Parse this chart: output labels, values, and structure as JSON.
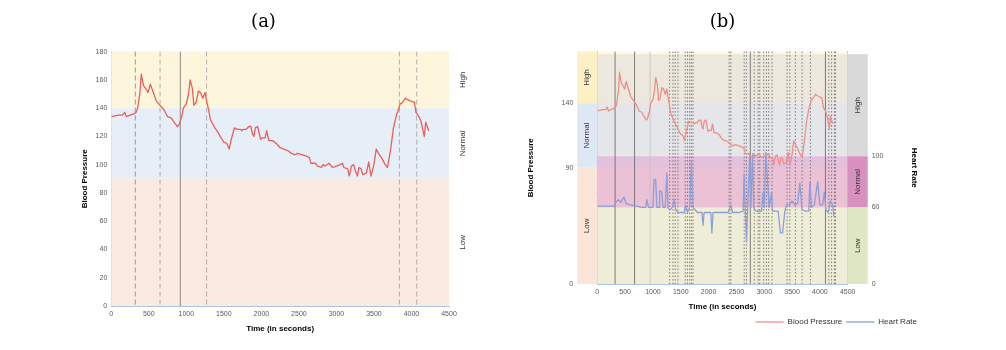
{
  "chart_data": [
    {
      "type": "line",
      "title": "(a)",
      "xlabel": "Time (in seconds)",
      "ylabel": "Blood Pressure",
      "xlim": [
        0,
        4500
      ],
      "xticks": [
        0,
        500,
        1000,
        1500,
        2000,
        2500,
        3000,
        3500,
        4000,
        4500
      ],
      "ylim": [
        0,
        180
      ],
      "yticks": [
        0,
        20,
        40,
        60,
        80,
        100,
        120,
        140,
        160,
        180
      ],
      "bands": [
        {
          "axis": "y",
          "from": 140,
          "to": 180,
          "label": "High",
          "color": "#fdf6dc"
        },
        {
          "axis": "y",
          "from": 90,
          "to": 140,
          "label": "Normal",
          "color": "#e6eef8"
        },
        {
          "axis": "y",
          "from": 0,
          "to": 90,
          "label": "Low",
          "color": "#fbeadf"
        }
      ],
      "ref_lines": [
        {
          "axis": "x",
          "value": 320,
          "line_style": "dashed",
          "color": "#808080"
        },
        {
          "axis": "x",
          "value": 650,
          "line_style": "dashed",
          "color": "#a0a0a0"
        },
        {
          "axis": "x",
          "value": 920,
          "line_style": "solid",
          "color": "#707070"
        },
        {
          "axis": "x",
          "value": 1270,
          "line_style": "dashed",
          "color": "#a0a0a0"
        },
        {
          "axis": "x",
          "value": 3840,
          "line_style": "dashed",
          "color": "#a0a0a0"
        },
        {
          "axis": "x",
          "value": 4070,
          "line_style": "dashed",
          "color": "#a0a0a0"
        }
      ],
      "series": [
        {
          "color": "#e8605a",
          "x": [
            0,
            100,
            150,
            180,
            200,
            250,
            300,
            330,
            350,
            380,
            400,
            430,
            470,
            490,
            520,
            560,
            600,
            650,
            700,
            750,
            800,
            850,
            880,
            900,
            940,
            960,
            1000,
            1030,
            1050,
            1080,
            1100,
            1130,
            1160,
            1190,
            1220,
            1250,
            1270,
            1300,
            1320,
            1380,
            1420,
            1450,
            1500,
            1540,
            1570,
            1600,
            1640,
            1680,
            1720,
            1740,
            1760,
            1800,
            1830,
            1860,
            1880,
            1900,
            1920,
            1950,
            1990,
            2010,
            2050,
            2070,
            2100,
            2150,
            2200,
            2250,
            2300,
            2350,
            2400,
            2450,
            2480,
            2550,
            2600,
            2640,
            2660,
            2720,
            2750,
            2800,
            2820,
            2850,
            2900,
            2950,
            3000,
            3050,
            3080,
            3100,
            3150,
            3170,
            3200,
            3230,
            3250,
            3280,
            3300,
            3330,
            3350,
            3400,
            3430,
            3460,
            3500,
            3530,
            3560,
            3600,
            3650,
            3680,
            3720,
            3760,
            3800,
            3850,
            3880,
            3920,
            3950,
            3990,
            4040,
            4060,
            4100,
            4130,
            4170,
            4190,
            4230
          ],
          "values": [
            134,
            135,
            135,
            137,
            134,
            135,
            136,
            137,
            140,
            150,
            164,
            156,
            153,
            151,
            157,
            151,
            145,
            142,
            139,
            134,
            133,
            129,
            127,
            128,
            134,
            140,
            143,
            150,
            160,
            154,
            142,
            144,
            152,
            151,
            147,
            151,
            145,
            138,
            132,
            126,
            123,
            120,
            116,
            115,
            111,
            118,
            126,
            125,
            125,
            124,
            125,
            125,
            127,
            127,
            122,
            120,
            126,
            127,
            118,
            119,
            119,
            124,
            117,
            117,
            115,
            112,
            111,
            110,
            108,
            107,
            108,
            107,
            106,
            105,
            101,
            101,
            99,
            98,
            100,
            99,
            101,
            98,
            99,
            100,
            101,
            98,
            97,
            92,
            99,
            100,
            96,
            92,
            98,
            97,
            93,
            94,
            102,
            92,
            100,
            111,
            108,
            105,
            100,
            98,
            110,
            126,
            135,
            143,
            144,
            147,
            146,
            145,
            144,
            137,
            134,
            130,
            120,
            130,
            124
          ]
        }
      ]
    },
    {
      "type": "line",
      "title": "(b)",
      "xlabel": "Time (in seconds)",
      "ylabel": "Blood Pressure",
      "y2label": "Heart Rate",
      "xlim": [
        0,
        4500
      ],
      "xticks": [
        0,
        500,
        1000,
        1500,
        2000,
        2500,
        3000,
        3500,
        4000,
        4500
      ],
      "ylim": [
        0,
        180
      ],
      "yticks": [
        0,
        90,
        140
      ],
      "y2lim": [
        0,
        182
      ],
      "y2ticks": [
        0,
        60,
        100
      ],
      "legend": "bottom right",
      "bands": [
        {
          "axis": "y",
          "from": 140,
          "to": 180,
          "label": "High",
          "color": "#fdf0c4"
        },
        {
          "axis": "y",
          "from": 90,
          "to": 140,
          "label": "Normal",
          "color": "#dde8f4"
        },
        {
          "axis": "y",
          "from": 0,
          "to": 90,
          "label": "Low",
          "color": "#fbe5d8"
        },
        {
          "axis": "y2",
          "from": 100,
          "to": 180,
          "label": "High",
          "color": "#d9d9d9"
        },
        {
          "axis": "y2",
          "from": 60,
          "to": 100,
          "label": "Normal",
          "color": "#d890c0"
        },
        {
          "axis": "y2",
          "from": 0,
          "to": 60,
          "label": "Low",
          "color": "#dfe8c4"
        }
      ],
      "ref_lines": [
        {
          "axis": "x",
          "value": 320,
          "line_style": "solid",
          "color": "#606060"
        },
        {
          "axis": "x",
          "value": 670,
          "line_style": "solid",
          "color": "#606060"
        },
        {
          "axis": "x",
          "value": 950,
          "line_style": "solid",
          "color": "#c0c0c0"
        },
        {
          "axis": "x",
          "value": 1300,
          "line_style": "dotted",
          "color": "#606060"
        },
        {
          "axis": "x",
          "value": 1360,
          "line_style": "dotted",
          "color": "#606060"
        },
        {
          "axis": "x",
          "value": 1400,
          "line_style": "dotted",
          "color": "#606060"
        },
        {
          "axis": "x",
          "value": 1450,
          "line_style": "dotted",
          "color": "#606060"
        },
        {
          "axis": "x",
          "value": 1580,
          "line_style": "dotted",
          "color": "#606060"
        },
        {
          "axis": "x",
          "value": 1620,
          "line_style": "dotted",
          "color": "#606060"
        },
        {
          "axis": "x",
          "value": 1660,
          "line_style": "dotted",
          "color": "#606060"
        },
        {
          "axis": "x",
          "value": 1690,
          "line_style": "dotted",
          "color": "#606060"
        },
        {
          "axis": "x",
          "value": 1720,
          "line_style": "dotted",
          "color": "#606060"
        },
        {
          "axis": "x",
          "value": 2370,
          "line_style": "dotted",
          "color": "#606060"
        },
        {
          "axis": "x",
          "value": 2400,
          "line_style": "dotted",
          "color": "#606060"
        },
        {
          "axis": "x",
          "value": 2640,
          "line_style": "dotted",
          "color": "#606060"
        },
        {
          "axis": "x",
          "value": 2680,
          "line_style": "dotted",
          "color": "#606060"
        },
        {
          "axis": "x",
          "value": 2750,
          "line_style": "solid",
          "color": "#606060"
        },
        {
          "axis": "x",
          "value": 2820,
          "line_style": "dotted",
          "color": "#606060"
        },
        {
          "axis": "x",
          "value": 2890,
          "line_style": "dotted",
          "color": "#606060"
        },
        {
          "axis": "x",
          "value": 2920,
          "line_style": "dotted",
          "color": "#606060"
        },
        {
          "axis": "x",
          "value": 2990,
          "line_style": "dotted",
          "color": "#606060"
        },
        {
          "axis": "x",
          "value": 3040,
          "line_style": "dotted",
          "color": "#606060"
        },
        {
          "axis": "x",
          "value": 3080,
          "line_style": "dotted",
          "color": "#606060"
        },
        {
          "axis": "x",
          "value": 3140,
          "line_style": "dotted",
          "color": "#606060"
        },
        {
          "axis": "x",
          "value": 3410,
          "line_style": "dotted",
          "color": "#606060"
        },
        {
          "axis": "x",
          "value": 3460,
          "line_style": "dotted",
          "color": "#606060"
        },
        {
          "axis": "x",
          "value": 3560,
          "line_style": "dotted",
          "color": "#606060"
        },
        {
          "axis": "x",
          "value": 3680,
          "line_style": "dotted",
          "color": "#606060"
        },
        {
          "axis": "x",
          "value": 3830,
          "line_style": "dotted",
          "color": "#606060"
        },
        {
          "axis": "x",
          "value": 4100,
          "line_style": "solid",
          "color": "#606060"
        },
        {
          "axis": "x",
          "value": 4160,
          "line_style": "dotted",
          "color": "#606060"
        },
        {
          "axis": "x",
          "value": 4210,
          "line_style": "dotted",
          "color": "#606060"
        },
        {
          "axis": "x",
          "value": 4260,
          "line_style": "dotted",
          "color": "#606060"
        },
        {
          "axis": "x",
          "value": 4280,
          "line_style": "dotted",
          "color": "#606060"
        }
      ],
      "series": [
        {
          "name": "Blood Pressure",
          "color": "#ef8f86",
          "x": [
            0,
            100,
            150,
            180,
            200,
            250,
            300,
            330,
            350,
            380,
            400,
            430,
            470,
            490,
            520,
            560,
            600,
            650,
            700,
            750,
            800,
            850,
            880,
            900,
            940,
            960,
            1000,
            1030,
            1050,
            1080,
            1100,
            1130,
            1160,
            1190,
            1220,
            1250,
            1270,
            1300,
            1320,
            1380,
            1420,
            1450,
            1500,
            1540,
            1570,
            1600,
            1640,
            1680,
            1720,
            1740,
            1760,
            1800,
            1830,
            1860,
            1880,
            1900,
            1920,
            1950,
            1990,
            2010,
            2050,
            2070,
            2100,
            2150,
            2200,
            2250,
            2300,
            2350,
            2400,
            2450,
            2480,
            2550,
            2600,
            2640,
            2660,
            2720,
            2750,
            2800,
            2820,
            2850,
            2900,
            2950,
            3000,
            3050,
            3080,
            3100,
            3150,
            3170,
            3200,
            3230,
            3250,
            3280,
            3300,
            3330,
            3350,
            3400,
            3430,
            3460,
            3500,
            3530,
            3560,
            3600,
            3650,
            3680,
            3720,
            3760,
            3800,
            3850,
            3880,
            3920,
            3950,
            3990,
            4040,
            4060,
            4100,
            4130,
            4170,
            4190,
            4230
          ],
          "values": [
            134,
            135,
            135,
            137,
            134,
            135,
            136,
            137,
            140,
            150,
            164,
            156,
            153,
            151,
            157,
            151,
            145,
            142,
            139,
            134,
            133,
            129,
            127,
            128,
            134,
            140,
            143,
            150,
            160,
            154,
            142,
            144,
            152,
            151,
            147,
            151,
            145,
            138,
            132,
            126,
            123,
            120,
            116,
            115,
            111,
            118,
            126,
            125,
            125,
            124,
            125,
            125,
            127,
            127,
            122,
            120,
            126,
            127,
            118,
            119,
            119,
            124,
            117,
            117,
            115,
            112,
            111,
            110,
            108,
            107,
            108,
            107,
            106,
            105,
            101,
            101,
            99,
            98,
            100,
            99,
            101,
            98,
            99,
            100,
            101,
            98,
            97,
            92,
            99,
            100,
            96,
            92,
            98,
            97,
            93,
            94,
            102,
            92,
            100,
            111,
            108,
            105,
            100,
            98,
            110,
            126,
            135,
            143,
            144,
            147,
            146,
            145,
            144,
            137,
            134,
            130,
            120,
            130,
            124
          ]
        },
        {
          "name": "Heart Rate",
          "color": "#8c9fd6",
          "axis": "y2",
          "x": [
            0,
            300,
            330,
            380,
            420,
            480,
            520,
            600,
            700,
            800,
            870,
            890,
            920,
            1000,
            1020,
            1050,
            1070,
            1110,
            1120,
            1160,
            1180,
            1220,
            1250,
            1270,
            1300,
            1350,
            1380,
            1410,
            1450,
            1560,
            1590,
            1620,
            1660,
            1690,
            1720,
            1800,
            1880,
            1900,
            1920,
            2000,
            2040,
            2059,
            2080,
            2200,
            2350,
            2400,
            2430,
            2550,
            2620,
            2640,
            2660,
            2682,
            2700,
            2740,
            2760,
            2790,
            2810,
            2850,
            2950,
            2980,
            3000,
            3030,
            3060,
            3090,
            3130,
            3150,
            3250,
            3290,
            3330,
            3370,
            3400,
            3450,
            3500,
            3550,
            3600,
            3640,
            3680,
            3750,
            3800,
            3820,
            3850,
            3900,
            3960,
            4000,
            4050,
            4080,
            4110,
            4150,
            4190,
            4230,
            4250
          ],
          "values": [
            61,
            61,
            64,
            66,
            64,
            68,
            63,
            62,
            61,
            60,
            60,
            66,
            60,
            60,
            82,
            82,
            60,
            60,
            73,
            72,
            60,
            60,
            87,
            60,
            58,
            60,
            66,
            58,
            56,
            56,
            62,
            56,
            60,
            97,
            60,
            56,
            56,
            46,
            56,
            56,
            56,
            40,
            56,
            56,
            56,
            62,
            56,
            56,
            57,
            86,
            56,
            33,
            56,
            102,
            60,
            102,
            60,
            57,
            57,
            72,
            60,
            103,
            80,
            60,
            72,
            57,
            57,
            40,
            40,
            57,
            62,
            62,
            65,
            62,
            63,
            79,
            58,
            57,
            57,
            80,
            60,
            62,
            80,
            62,
            62,
            72,
            58,
            56,
            65,
            62,
            53
          ]
        }
      ]
    }
  ]
}
